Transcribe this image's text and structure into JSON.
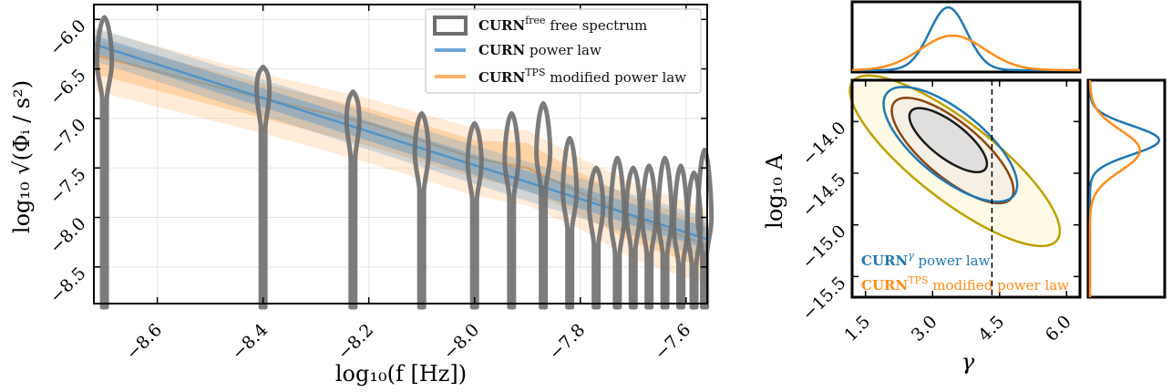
{
  "colors": {
    "free_spectrum": "#6e6e6e",
    "power_law": "#1f77b4",
    "tps": "#ff8c1a",
    "contour_outer": "#bfa000",
    "contour_mid": "#8b4513",
    "contour_inner": "#1a1a1a",
    "band_blue": "#4a90c8",
    "band_orange": "#ffa54f"
  },
  "chart_data": [
    {
      "type": "violin+band",
      "title": "",
      "xlabel": "log₁₀(f [Hz])",
      "ylabel": "log₁₀ √(Φᵢ / s²)",
      "xlim": [
        -8.72,
        -7.56
      ],
      "ylim": [
        -8.87,
        -5.85
      ],
      "xticks": [
        -8.6,
        -8.4,
        -8.2,
        -8.0,
        -7.8,
        -7.6
      ],
      "xtick_labels": [
        "−8.6",
        "−8.4",
        "−8.2",
        "−8.0",
        "−7.8",
        "−7.6"
      ],
      "yticks": [
        -6.0,
        -6.5,
        -7.0,
        -7.5,
        -8.0,
        -8.5
      ],
      "ytick_labels": [
        "−6.0",
        "−6.5",
        "−7.0",
        "−7.5",
        "−8.0",
        "−8.5"
      ],
      "grid": true,
      "legend_position": "top-right",
      "legend": [
        {
          "key": "free",
          "label_bold": "CURN",
          "label_sup": "free",
          "label_rest": " free spectrum"
        },
        {
          "key": "pl",
          "label_bold": "CURN",
          "label_sup": "",
          "label_rest": " power law"
        },
        {
          "key": "tps",
          "label_bold": "CURN",
          "label_sup": "TPS",
          "label_rest": " modified power law"
        }
      ],
      "violins": [
        {
          "x": -8.7,
          "mode": -6.43,
          "top": -5.98,
          "width": 0.014
        },
        {
          "x": -8.4,
          "mode": -6.72,
          "top": -6.48,
          "width": 0.012
        },
        {
          "x": -8.23,
          "mode": -7.02,
          "top": -6.73,
          "width": 0.012
        },
        {
          "x": -8.1,
          "mode": -7.35,
          "top": -6.95,
          "width": 0.013
        },
        {
          "x": -8.0,
          "mode": -7.45,
          "top": -7.05,
          "width": 0.013
        },
        {
          "x": -7.93,
          "mode": -7.42,
          "top": -6.95,
          "width": 0.013
        },
        {
          "x": -7.87,
          "mode": -7.35,
          "top": -6.85,
          "width": 0.013
        },
        {
          "x": -7.82,
          "mode": -7.75,
          "top": -7.2,
          "width": 0.013
        },
        {
          "x": -7.77,
          "mode": -7.9,
          "top": -7.5,
          "width": 0.013
        },
        {
          "x": -7.73,
          "mode": -8.0,
          "top": -7.4,
          "width": 0.013
        },
        {
          "x": -7.7,
          "mode": -7.95,
          "top": -7.5,
          "width": 0.013
        },
        {
          "x": -7.67,
          "mode": -8.0,
          "top": -7.48,
          "width": 0.013
        },
        {
          "x": -7.64,
          "mode": -8.0,
          "top": -7.4,
          "width": 0.013
        },
        {
          "x": -7.61,
          "mode": -8.1,
          "top": -7.48,
          "width": 0.013
        },
        {
          "x": -7.585,
          "mode": -8.1,
          "top": -7.55,
          "width": 0.013
        },
        {
          "x": -7.565,
          "mode": -8.0,
          "top": -7.32,
          "width": 0.013
        }
      ],
      "series": [
        {
          "key": "pl",
          "x": [
            -8.72,
            -7.56
          ],
          "median": [
            -6.25,
            -8.22
          ],
          "inner": [
            [
              -6.16,
              -6.34
            ],
            [
              -8.1,
              -8.32
            ]
          ],
          "outer": [
            [
              -6.08,
              -6.42
            ],
            [
              -8.0,
              -8.42
            ]
          ]
        },
        {
          "key": "tps",
          "x": [
            -8.72,
            -8.4,
            -8.2,
            -8.0,
            -7.9,
            -7.8,
            -7.7,
            -7.56
          ],
          "median": [
            -6.36,
            -6.8,
            -7.05,
            -7.4,
            -7.5,
            -7.75,
            -8.0,
            -8.28
          ],
          "inner": [
            [
              -6.2,
              -6.55
            ],
            [
              -6.65,
              -7.0
            ],
            [
              -6.9,
              -7.28
            ],
            [
              -7.22,
              -7.6
            ],
            [
              -7.25,
              -7.72
            ],
            [
              -7.55,
              -7.98
            ],
            [
              -7.8,
              -8.25
            ],
            [
              -8.05,
              -8.52
            ]
          ],
          "outer": [
            [
              -6.1,
              -6.72
            ],
            [
              -6.55,
              -7.15
            ],
            [
              -6.8,
              -7.45
            ],
            [
              -7.1,
              -7.78
            ],
            [
              -7.12,
              -7.88
            ],
            [
              -7.4,
              -8.12
            ],
            [
              -7.65,
              -8.42
            ],
            [
              -7.92,
              -8.68
            ]
          ]
        }
      ]
    },
    {
      "type": "contour",
      "title": "",
      "xlabel": "γ",
      "ylabel": "log₁₀ A",
      "xlim": [
        1.2,
        6.3
      ],
      "ylim": [
        -15.7,
        -13.6
      ],
      "xticks": [
        1.5,
        3.0,
        4.5,
        6.0
      ],
      "xtick_labels": [
        "1.5",
        "3.0",
        "4.5",
        "6.0"
      ],
      "yticks": [
        -14.0,
        -14.5,
        -15.0,
        -15.5
      ],
      "ytick_labels": [
        "−14.0",
        "−14.5",
        "−15.0",
        "−15.5"
      ],
      "reference_line_x": 4.33,
      "legend_position": "bottom-left",
      "legend": [
        {
          "key": "pl",
          "label_bold": "CURN",
          "label_sup": "γ",
          "label_rest": " power law"
        },
        {
          "key": "tps",
          "label_bold": "CURN",
          "label_sup": "TPS",
          "label_rest": " modified power law"
        }
      ],
      "contours": [
        {
          "key": "tps_outer",
          "center": [
            3.5,
            -14.38
          ],
          "semi_major": 2.45,
          "semi_minor": 0.45,
          "slope": -0.3
        },
        {
          "key": "tps_mid",
          "center": [
            3.45,
            -14.28
          ],
          "semi_major": 1.42,
          "semi_minor": 0.32,
          "slope": -0.3
        },
        {
          "key": "pl_outer",
          "center": [
            3.4,
            -14.22
          ],
          "semi_major": 1.55,
          "semi_minor": 0.38,
          "slope": -0.28
        },
        {
          "key": "pl_inner",
          "center": [
            3.35,
            -14.18
          ],
          "semi_major": 0.9,
          "semi_minor": 0.2,
          "slope": -0.28
        }
      ],
      "marginal_gamma": [
        {
          "key": "pl",
          "mean": 3.35,
          "sd": 0.42,
          "peak": 1.0
        },
        {
          "key": "tps",
          "mean": 3.45,
          "sd": 0.72,
          "peak": 0.55
        }
      ],
      "marginal_log10A": [
        {
          "key": "pl",
          "mean": -14.18,
          "sd": 0.14,
          "peak": 1.0
        },
        {
          "key": "tps",
          "mean": -14.28,
          "sd": 0.2,
          "peak": 0.72
        }
      ]
    }
  ]
}
